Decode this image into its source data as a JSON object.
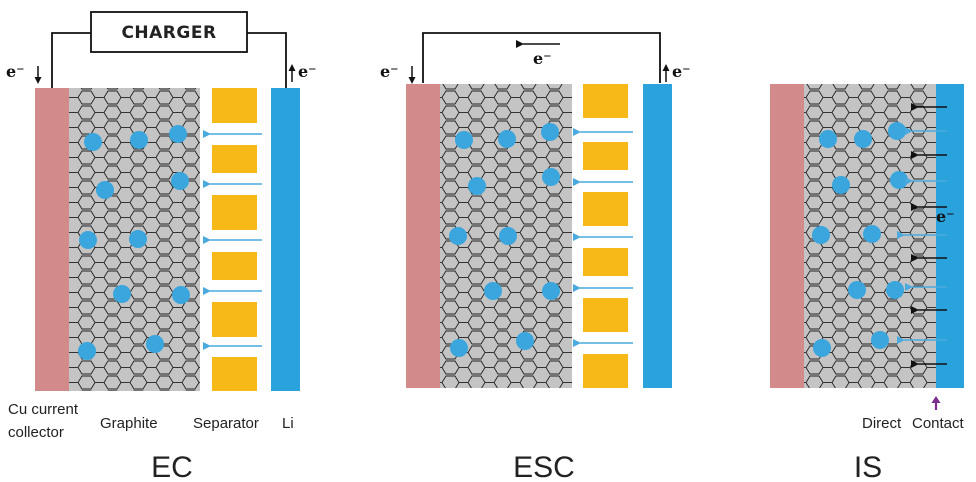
{
  "panels": {
    "ec": {
      "title": "EC",
      "charger_label": "CHARGER",
      "electron_left": "e⁻",
      "electron_right": "e⁻",
      "labels": {
        "cu_line1": "Cu current",
        "cu_line2": "collector",
        "graphite": "Graphite",
        "separator": "Separator",
        "li": "Li"
      }
    },
    "esc": {
      "title": "ESC",
      "electron_left": "e⁻",
      "electron_right": "e⁻",
      "electron_top": "e⁻"
    },
    "is": {
      "title": "IS",
      "electron_side": "e⁻",
      "contact_left": "Direct",
      "contact_right": "Contact"
    }
  },
  "colors": {
    "cu_collector": "#d28a8a",
    "graphite_bg": "#c4c4c4",
    "li_metal": "#2aa3dd",
    "li_ion": "#3aa6dd",
    "separator": "#f6b918",
    "ion_arrow": "#4aa9dd",
    "contact_arrow": "#7a2d8c"
  }
}
